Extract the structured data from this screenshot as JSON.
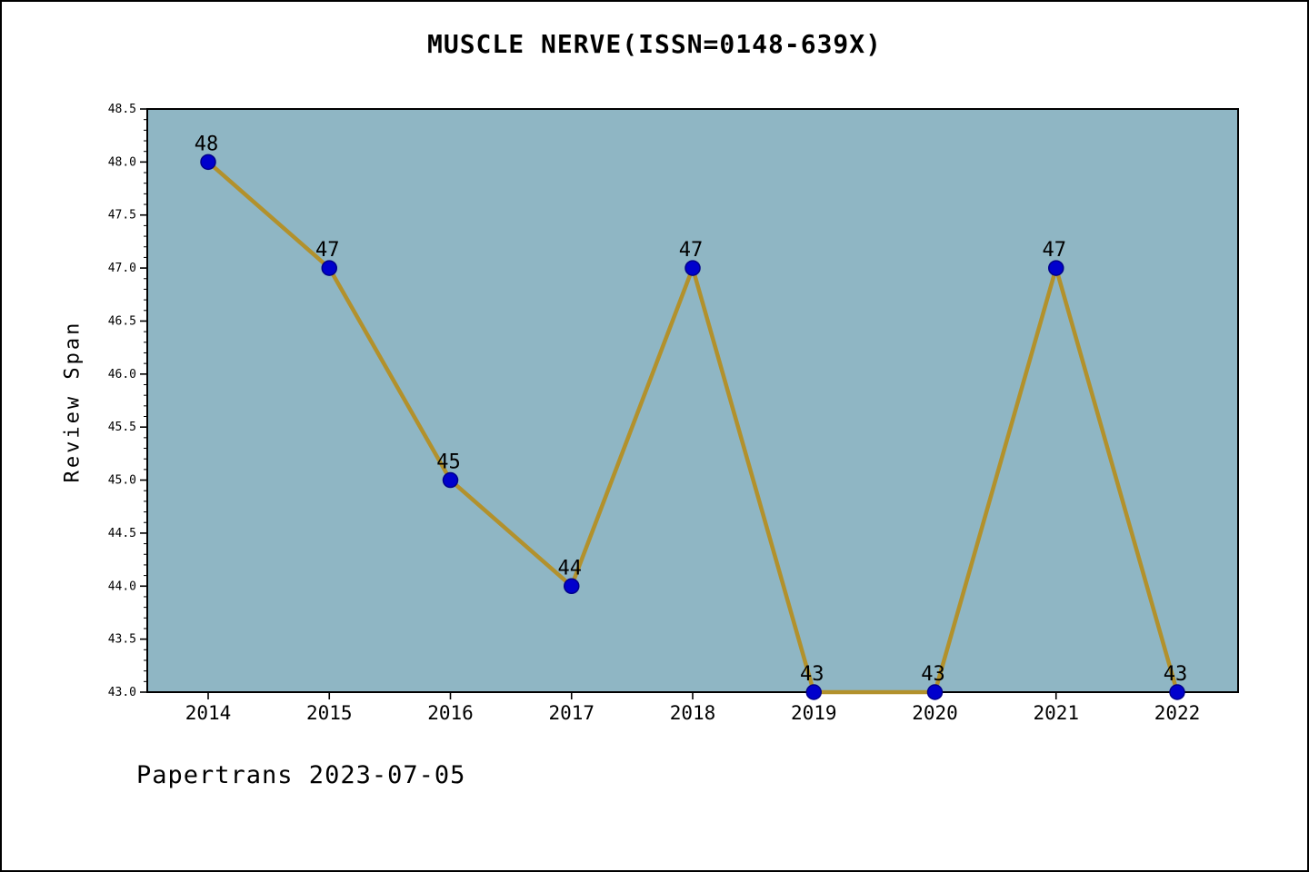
{
  "chart_data": {
    "type": "line",
    "title": "MUSCLE NERVE(ISSN=0148-639X)",
    "ylabel": "Review Span",
    "xlabel": "",
    "categories": [
      "2014",
      "2015",
      "2016",
      "2017",
      "2018",
      "2019",
      "2020",
      "2021",
      "2022"
    ],
    "series": [
      {
        "name": "Review Span",
        "values": [
          48,
          47,
          45,
          44,
          47,
          43,
          43,
          47,
          43
        ]
      }
    ],
    "point_labels": [
      "48",
      "47",
      "45",
      "44",
      "47",
      "43",
      "43",
      "47",
      "43"
    ],
    "ylim": [
      43.0,
      48.5
    ],
    "ytick_step": 0.5,
    "minor_tick_step": 0.1,
    "grid": false,
    "legend_position": "none",
    "colors": {
      "plot_bg": "#8fb6c4",
      "line": "#b2912c",
      "marker_fill": "#0000cd",
      "marker_edge": "#00008b",
      "axis": "#000000",
      "text": "#000000",
      "page_bg": "#ffffff",
      "border": "#000000"
    }
  },
  "footer": {
    "text": "Papertrans 2023-07-05"
  }
}
